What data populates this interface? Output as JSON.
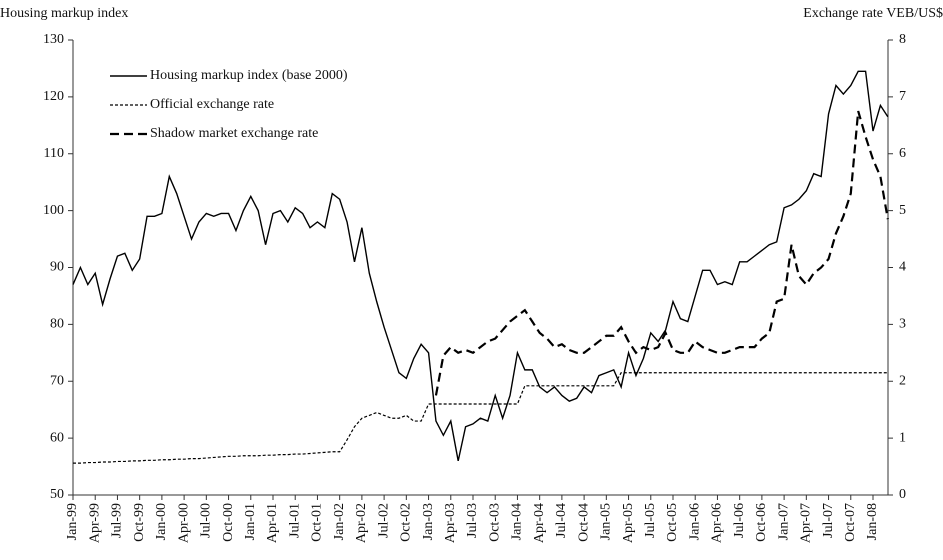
{
  "chart_data": {
    "type": "line",
    "y_label": "Housing markup index",
    "y2_label": "Exchange rate VEB/US$",
    "legend": "upper left",
    "categories": [
      "Jan-99",
      null,
      null,
      "Apr-99",
      null,
      null,
      "Jul-99",
      null,
      null,
      "Oct-99",
      null,
      null,
      "Jan-00",
      null,
      null,
      "Apr-00",
      null,
      null,
      "Jul-00",
      null,
      null,
      "Oct-00",
      null,
      null,
      "Jan-01",
      null,
      null,
      "Apr-01",
      null,
      null,
      "Jul-01",
      null,
      null,
      "Oct-01",
      null,
      null,
      "Jan-02",
      null,
      null,
      "Apr-02",
      null,
      null,
      "Jul-02",
      null,
      null,
      "Oct-02",
      null,
      null,
      "Jan-03",
      null,
      null,
      "Apr-03",
      null,
      null,
      "Jul-03",
      null,
      null,
      "Oct-03",
      null,
      null,
      "Jan-04",
      null,
      null,
      "Apr-04",
      null,
      null,
      "Jul-04",
      null,
      null,
      "Oct-04",
      null,
      null,
      "Jan-05",
      null,
      null,
      "Apr-05",
      null,
      null,
      "Jul-05",
      null,
      null,
      "Oct-05",
      null,
      null,
      "Jan-06",
      null,
      null,
      "Apr-06",
      null,
      null,
      "Jul-06",
      null,
      null,
      "Oct-06",
      null,
      null,
      "Jan-07",
      null,
      null,
      "Apr-07",
      null,
      null,
      "Jul-07",
      null,
      null,
      "Oct-07",
      null,
      null,
      "Jan-08",
      null,
      null
    ],
    "ylim": [
      50,
      130
    ],
    "yticks": [
      50,
      60,
      70,
      80,
      90,
      100,
      110,
      120,
      130
    ],
    "y2lim": [
      0,
      8
    ],
    "y2ticks": [
      0,
      1,
      2,
      3,
      4,
      5,
      6,
      7,
      8
    ],
    "series": [
      {
        "name": "Housing markup index (base 2000)",
        "color": "#000000",
        "style": "solid",
        "values": [
          87,
          90,
          87,
          89,
          83.5,
          88,
          92,
          92.5,
          89.5,
          91.5,
          99,
          99,
          99.5,
          106,
          103,
          99,
          95,
          98,
          99.5,
          99,
          99.5,
          99.5,
          96.5,
          100,
          102.5,
          100,
          94,
          99.5,
          100,
          98,
          100.5,
          99.5,
          97,
          98,
          97,
          103,
          102,
          98,
          91,
          97,
          89,
          84,
          79.5,
          75.5,
          71.5,
          70.5,
          74,
          76.5,
          75,
          63,
          60.5,
          63,
          56,
          62,
          62.5,
          63.5,
          63,
          67.5,
          63.5,
          67.5,
          75,
          72,
          72,
          69,
          68,
          69,
          67.5,
          66.5,
          67,
          69,
          68,
          71,
          71.5,
          72,
          69,
          75,
          71,
          74,
          78.5,
          77,
          79,
          84,
          81,
          80.5,
          85,
          89.5,
          89.5,
          87,
          87.5,
          87,
          91,
          91,
          92,
          93,
          94,
          94.5,
          100.5,
          101,
          102,
          103.5,
          106.5,
          106,
          117,
          122,
          120.5,
          122,
          124.5,
          124.5,
          114,
          118.5,
          116.5
        ]
      },
      {
        "name": "Official exchange rate",
        "color": "#000000",
        "style": "dotted",
        "axis": "y2",
        "values": [
          0.56,
          0.56,
          0.57,
          0.57,
          0.58,
          0.58,
          0.59,
          0.59,
          0.6,
          0.6,
          0.61,
          0.61,
          0.62,
          0.62,
          0.63,
          0.63,
          0.64,
          0.64,
          0.65,
          0.66,
          0.67,
          0.68,
          0.68,
          0.69,
          0.69,
          0.69,
          0.7,
          0.7,
          0.71,
          0.71,
          0.72,
          0.72,
          0.73,
          0.74,
          0.75,
          0.76,
          0.76,
          0.97,
          1.2,
          1.35,
          1.4,
          1.45,
          1.4,
          1.35,
          1.35,
          1.4,
          1.3,
          1.3,
          1.6,
          1.6,
          1.6,
          1.6,
          1.6,
          1.6,
          1.6,
          1.6,
          1.6,
          1.6,
          1.6,
          1.6,
          1.6,
          1.92,
          1.92,
          1.92,
          1.92,
          1.92,
          1.92,
          1.92,
          1.92,
          1.92,
          1.92,
          1.92,
          1.92,
          1.92,
          2.15,
          2.15,
          2.15,
          2.15,
          2.15,
          2.15,
          2.15,
          2.15,
          2.15,
          2.15,
          2.15,
          2.15,
          2.15,
          2.15,
          2.15,
          2.15,
          2.15,
          2.15,
          2.15,
          2.15,
          2.15,
          2.15,
          2.15,
          2.15,
          2.15,
          2.15,
          2.15,
          2.15,
          2.15,
          2.15,
          2.15,
          2.15,
          2.15,
          2.15,
          2.15,
          2.15,
          2.15
        ]
      },
      {
        "name": "Shadow market exchange rate",
        "color": "#000000",
        "style": "dashed",
        "axis": "y2",
        "values": [
          null,
          null,
          null,
          null,
          null,
          null,
          null,
          null,
          null,
          null,
          null,
          null,
          null,
          null,
          null,
          null,
          null,
          null,
          null,
          null,
          null,
          null,
          null,
          null,
          null,
          null,
          null,
          null,
          null,
          null,
          null,
          null,
          null,
          null,
          null,
          null,
          null,
          null,
          null,
          null,
          null,
          null,
          null,
          null,
          null,
          null,
          null,
          null,
          null,
          1.75,
          2.45,
          2.6,
          2.5,
          2.55,
          2.5,
          2.6,
          2.7,
          2.75,
          2.9,
          3.05,
          3.15,
          3.25,
          3.05,
          2.85,
          2.75,
          2.6,
          2.65,
          2.55,
          2.5,
          2.5,
          2.6,
          2.7,
          2.8,
          2.8,
          2.95,
          2.7,
          2.5,
          2.6,
          2.55,
          2.6,
          2.85,
          2.55,
          2.5,
          2.5,
          2.7,
          2.6,
          2.55,
          2.5,
          2.5,
          2.55,
          2.6,
          2.6,
          2.6,
          2.75,
          2.85,
          3.4,
          3.45,
          4.4,
          3.85,
          3.7,
          3.9,
          4.0,
          4.15,
          4.6,
          4.9,
          5.3,
          6.75,
          6.3,
          5.9,
          5.6,
          4.85
        ]
      }
    ]
  }
}
